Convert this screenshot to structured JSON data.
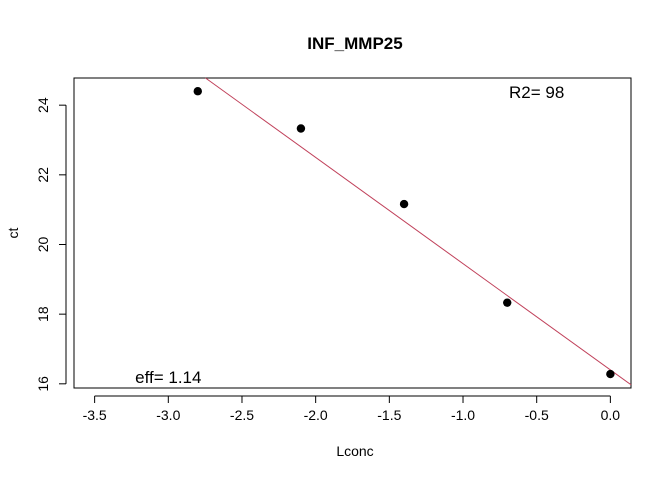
{
  "chart_data": {
    "type": "scatter",
    "title": "INF_MMP25",
    "xlabel": "Lconc",
    "ylabel": "ct",
    "xlim": [
      -3.64,
      0.14
    ],
    "ylim": [
      15.88,
      24.78
    ],
    "x_ticks": [
      -3.5,
      -3.0,
      -2.5,
      -2.0,
      -1.5,
      -1.0,
      -0.5,
      0.0
    ],
    "x_tick_labels": [
      "-3.5",
      "-3.0",
      "-2.5",
      "-2.0",
      "-1.5",
      "-1.0",
      "-0.5",
      "0.0"
    ],
    "y_ticks": [
      16,
      18,
      20,
      22,
      24
    ],
    "y_tick_labels": [
      "16",
      "18",
      "20",
      "22",
      "24"
    ],
    "points": [
      {
        "x": -2.8,
        "y": 24.4
      },
      {
        "x": -2.1,
        "y": 23.33
      },
      {
        "x": -1.4,
        "y": 21.16
      },
      {
        "x": -0.7,
        "y": 18.33
      },
      {
        "x": 0.0,
        "y": 16.28
      }
    ],
    "regression_line": {
      "slope": -3.05,
      "intercept": 16.4,
      "color": "#c0405a"
    },
    "annotations": [
      {
        "text": "R2= 98",
        "x": -0.5,
        "y": 24.38
      },
      {
        "text": "eff= 1.14",
        "x": -3.0,
        "y": 16.2
      }
    ],
    "grid": false,
    "legend": "none",
    "point_color": "#000000"
  }
}
